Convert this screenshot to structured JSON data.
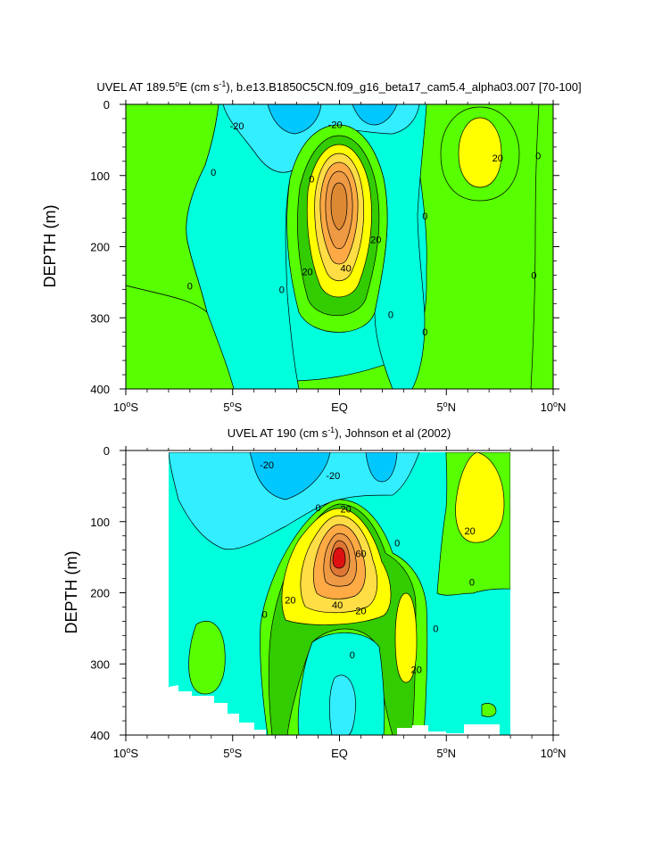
{
  "chart_data": [
    {
      "type": "contour",
      "title_main": "UVEL AT 189.5",
      "title_sup_deg": "o",
      "title_after_deg": "E (cm s",
      "title_sup_exp": "-1",
      "title_rest": "), b.e13.B1850C5CN.f09_g16_beta17_cam5.4_alpha03.007 [70-100]",
      "ylabel": "DEPTH (m)",
      "xlabel": "",
      "x_ticks": [
        {
          "value": -10,
          "text": "10",
          "sup": "o",
          "suffix": "S"
        },
        {
          "value": -5,
          "text": "5",
          "sup": "o",
          "suffix": "S"
        },
        {
          "value": 0,
          "text": "EQ",
          "sup": "",
          "suffix": ""
        },
        {
          "value": 5,
          "text": "5",
          "sup": "o",
          "suffix": "N"
        },
        {
          "value": 10,
          "text": "10",
          "sup": "o",
          "suffix": "N"
        }
      ],
      "y_ticks": [
        0,
        100,
        200,
        300,
        400
      ],
      "xlim": [
        -10,
        10
      ],
      "ylim": [
        400,
        0
      ],
      "levels": [
        -40,
        -30,
        -20,
        -10,
        0,
        10,
        20,
        30,
        40,
        50,
        60,
        70
      ],
      "contour_labels": [
        {
          "lat": -4.8,
          "depth": 30,
          "text": "-20"
        },
        {
          "lat": -0.2,
          "depth": 28,
          "text": "-20"
        },
        {
          "lat": -5.9,
          "depth": 95,
          "text": "0"
        },
        {
          "lat": -1.3,
          "depth": 105,
          "text": "0"
        },
        {
          "lat": -7.0,
          "depth": 255,
          "text": "0"
        },
        {
          "lat": -2.7,
          "depth": 260,
          "text": "0"
        },
        {
          "lat": 2.4,
          "depth": 295,
          "text": "0"
        },
        {
          "lat": 4.0,
          "depth": 157,
          "text": "0"
        },
        {
          "lat": 4.0,
          "depth": 320,
          "text": "0"
        },
        {
          "lat": 9.3,
          "depth": 72,
          "text": "0"
        },
        {
          "lat": 9.1,
          "depth": 240,
          "text": "0"
        },
        {
          "lat": 7.4,
          "depth": 75,
          "text": "20"
        },
        {
          "lat": 1.7,
          "depth": 190,
          "text": "20"
        },
        {
          "lat": -1.5,
          "depth": 235,
          "text": "20"
        },
        {
          "lat": 0.3,
          "depth": 230,
          "text": "40"
        }
      ]
    },
    {
      "type": "contour",
      "title_main": "UVEL AT 190 (cm s",
      "title_sup_exp": "-1",
      "title_rest": "), Johnson et al (2002)",
      "ylabel": "DEPTH (m)",
      "xlabel": "",
      "x_ticks": [
        {
          "value": -10,
          "text": "10",
          "sup": "o",
          "suffix": "S"
        },
        {
          "value": -5,
          "text": "5",
          "sup": "o",
          "suffix": "S"
        },
        {
          "value": 0,
          "text": "EQ",
          "sup": "",
          "suffix": ""
        },
        {
          "value": 5,
          "text": "5",
          "sup": "o",
          "suffix": "N"
        },
        {
          "value": 10,
          "text": "10",
          "sup": "o",
          "suffix": "N"
        }
      ],
      "y_ticks": [
        0,
        100,
        200,
        300,
        400
      ],
      "xlim": [
        -10,
        10
      ],
      "ylim": [
        400,
        0
      ],
      "data_lat_range": [
        -8,
        8
      ],
      "levels": [
        -40,
        -30,
        -20,
        -10,
        0,
        10,
        20,
        30,
        40,
        50,
        60,
        70
      ],
      "contour_labels": [
        {
          "lat": -3.4,
          "depth": 20,
          "text": "-20"
        },
        {
          "lat": -0.3,
          "depth": 35,
          "text": "-20"
        },
        {
          "lat": -1.0,
          "depth": 80,
          "text": "0"
        },
        {
          "lat": 0.3,
          "depth": 82,
          "text": "20"
        },
        {
          "lat": 1.0,
          "depth": 145,
          "text": "60"
        },
        {
          "lat": 2.7,
          "depth": 130,
          "text": "0"
        },
        {
          "lat": -2.3,
          "depth": 210,
          "text": "20"
        },
        {
          "lat": -0.1,
          "depth": 217,
          "text": "40"
        },
        {
          "lat": 1.0,
          "depth": 225,
          "text": "20"
        },
        {
          "lat": 0.6,
          "depth": 287,
          "text": "0"
        },
        {
          "lat": 3.6,
          "depth": 308,
          "text": "20"
        },
        {
          "lat": 4.5,
          "depth": 250,
          "text": "0"
        },
        {
          "lat": 6.1,
          "depth": 113,
          "text": "20"
        },
        {
          "lat": 6.2,
          "depth": 185,
          "text": "0"
        },
        {
          "lat": -3.5,
          "depth": 230,
          "text": "0"
        }
      ]
    }
  ]
}
